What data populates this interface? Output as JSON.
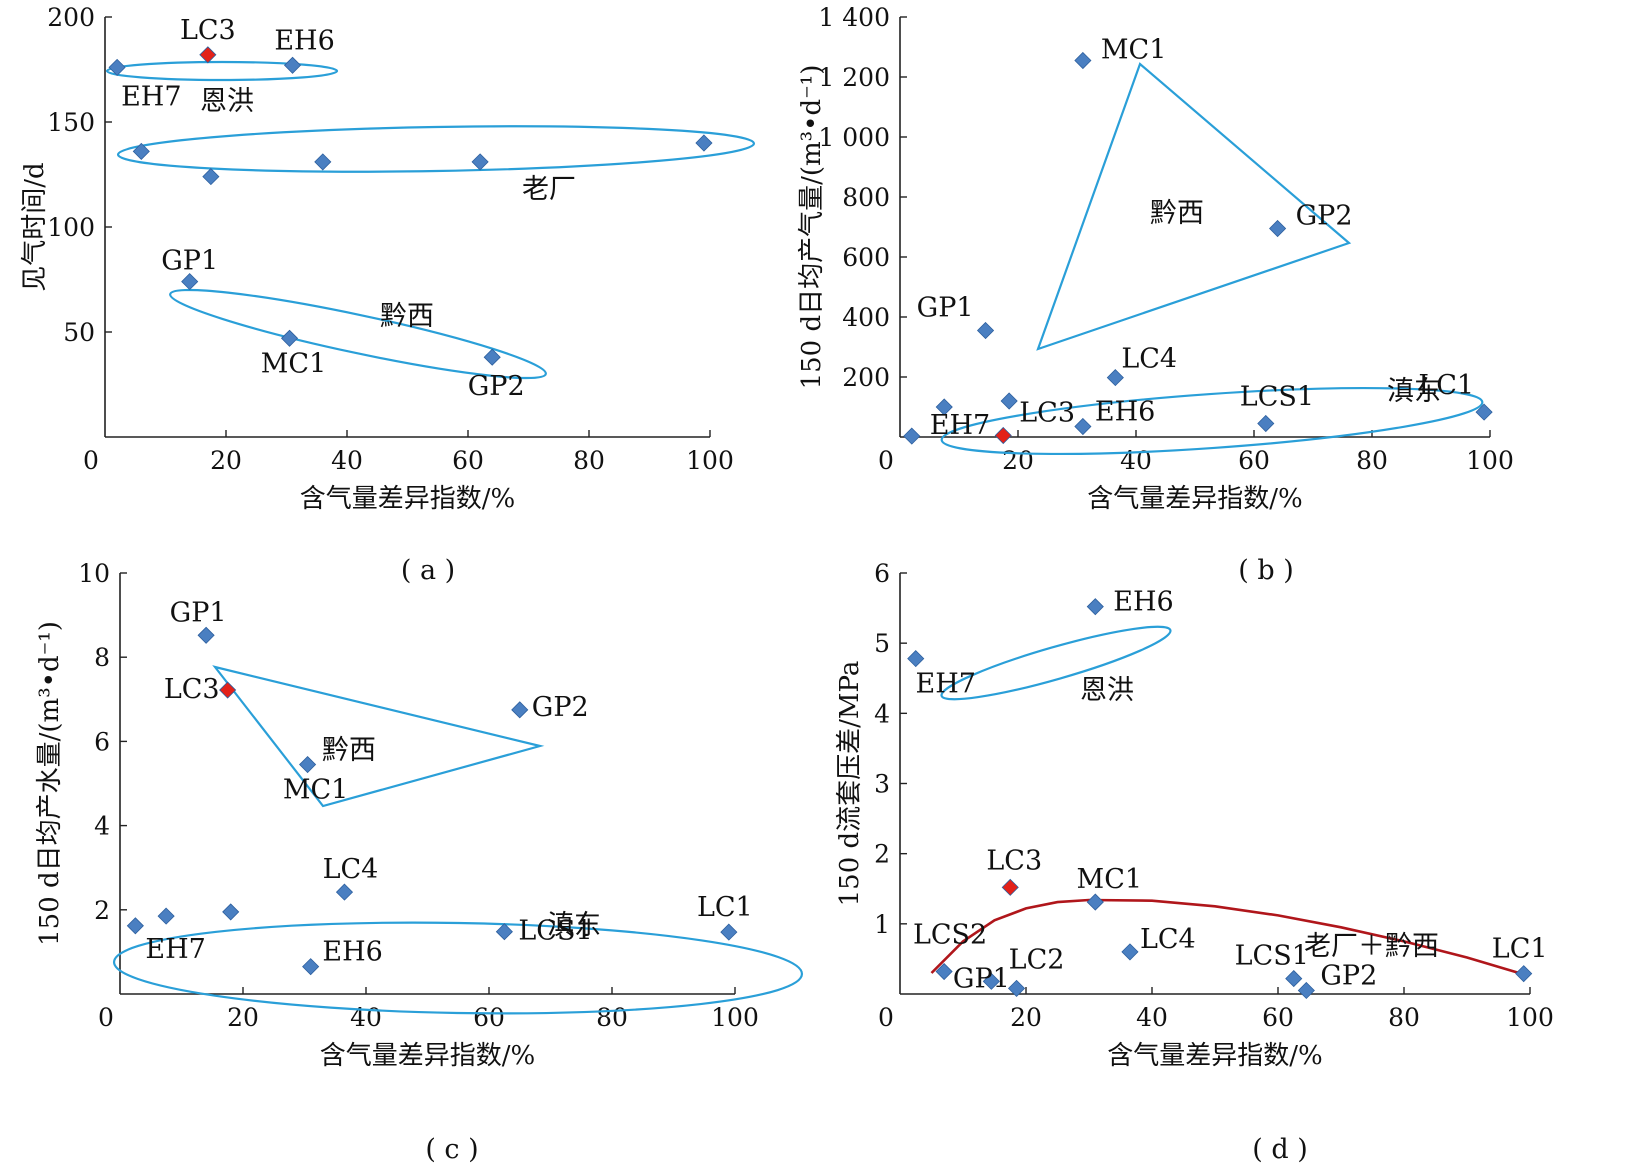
{
  "colors": {
    "normal_point": "#4a7fc1",
    "special_point": "#e32119",
    "enclosure": "#2a9fd8",
    "trend": "#b0161b"
  },
  "chart_data": [
    {
      "id": "a",
      "type": "scatter",
      "caption": "( a )",
      "xlabel": "含气量差异指数/%",
      "ylabel": "见气时间/d",
      "xlim": [
        0,
        100
      ],
      "ylim": [
        0,
        200
      ],
      "xticks": [
        0,
        20,
        40,
        60,
        80,
        100
      ],
      "yticks": [
        50,
        100,
        150,
        200
      ],
      "xtick_labels": [
        "0",
        "20",
        "40",
        "60",
        "80",
        "100"
      ],
      "ytick_labels": [
        "50",
        "100",
        "150",
        "200"
      ],
      "points": [
        {
          "label": "EH7",
          "x": 2,
          "y": 176,
          "color": "normal"
        },
        {
          "label": "LC3",
          "x": 17,
          "y": 182,
          "color": "special"
        },
        {
          "label": "EH6",
          "x": 31,
          "y": 177,
          "color": "normal"
        },
        {
          "label": "",
          "x": 6,
          "y": 136,
          "color": "normal"
        },
        {
          "label": "",
          "x": 17.5,
          "y": 124,
          "color": "normal"
        },
        {
          "label": "",
          "x": 36,
          "y": 131,
          "color": "normal"
        },
        {
          "label": "",
          "x": 62,
          "y": 131,
          "color": "normal"
        },
        {
          "label": "",
          "x": 99,
          "y": 140,
          "color": "normal"
        },
        {
          "label": "GP1",
          "x": 14,
          "y": 74,
          "color": "normal"
        },
        {
          "label": "MC1",
          "x": 30.5,
          "y": 47,
          "color": "normal"
        },
        {
          "label": "GP2",
          "x": 64,
          "y": 38,
          "color": "normal"
        }
      ],
      "groups": [
        "恩洪",
        "老厂",
        "黔西"
      ]
    },
    {
      "id": "b",
      "type": "scatter",
      "caption": "( b )",
      "xlabel": "含气量差异指数/%",
      "ylabel": "150 d日均产气量/(m³•d⁻¹)",
      "xlim": [
        0,
        100
      ],
      "ylim": [
        0,
        1400
      ],
      "xticks": [
        0,
        20,
        40,
        60,
        80,
        100
      ],
      "yticks": [
        200,
        400,
        600,
        800,
        1000,
        1200,
        1400
      ],
      "xtick_labels": [
        "0",
        "20",
        "40",
        "60",
        "80",
        "100"
      ],
      "ytick_labels": [
        "200",
        "400",
        "600",
        "800",
        "1 000",
        "1 200",
        "1 400"
      ],
      "points": [
        {
          "label": "MC1",
          "x": 31,
          "y": 1255,
          "color": "normal"
        },
        {
          "label": "GP2",
          "x": 64,
          "y": 695,
          "color": "normal"
        },
        {
          "label": "GP1",
          "x": 14.5,
          "y": 355,
          "color": "normal"
        },
        {
          "label": "LC4",
          "x": 36.5,
          "y": 198,
          "color": "normal"
        },
        {
          "label": "LC1",
          "x": 99,
          "y": 83,
          "color": "normal"
        },
        {
          "label": "LCS1",
          "x": 62,
          "y": 45,
          "color": "normal"
        },
        {
          "label": "EH6",
          "x": 31,
          "y": 35,
          "color": "normal"
        },
        {
          "label": "LC3",
          "x": 17.5,
          "y": 5,
          "color": "special"
        },
        {
          "label": "",
          "x": 18.5,
          "y": 120,
          "color": "normal"
        },
        {
          "label": "",
          "x": 7.5,
          "y": 100,
          "color": "normal"
        },
        {
          "label": "EH7",
          "x": 2,
          "y": 3,
          "color": "normal"
        }
      ],
      "groups": [
        "黔西",
        "滇东"
      ]
    },
    {
      "id": "c",
      "type": "scatter",
      "caption": "( c )",
      "xlabel": "含气量差异指数/%",
      "ylabel": "150 d日均产水量/(m³•d⁻¹)",
      "xlim": [
        0,
        100
      ],
      "ylim": [
        0,
        10
      ],
      "xticks": [
        0,
        20,
        40,
        60,
        80,
        100
      ],
      "yticks": [
        2,
        4,
        6,
        8,
        10
      ],
      "xtick_labels": [
        "0",
        "20",
        "40",
        "60",
        "80",
        "100"
      ],
      "ytick_labels": [
        "2",
        "4",
        "6",
        "8",
        "10"
      ],
      "points": [
        {
          "label": "GP1",
          "x": 14,
          "y": 8.52,
          "color": "normal"
        },
        {
          "label": "LC3",
          "x": 17.5,
          "y": 7.22,
          "color": "special"
        },
        {
          "label": "GP2",
          "x": 65,
          "y": 6.75,
          "color": "normal"
        },
        {
          "label": "MC1",
          "x": 30.5,
          "y": 5.45,
          "color": "normal"
        },
        {
          "label": "LC4",
          "x": 36.5,
          "y": 2.42,
          "color": "normal"
        },
        {
          "label": "",
          "x": 18,
          "y": 1.95,
          "color": "normal"
        },
        {
          "label": "",
          "x": 7.5,
          "y": 1.85,
          "color": "normal"
        },
        {
          "label": "EH7",
          "x": 2.5,
          "y": 1.62,
          "color": "normal"
        },
        {
          "label": "LCS1",
          "x": 62.5,
          "y": 1.48,
          "color": "normal"
        },
        {
          "label": "LC1",
          "x": 99,
          "y": 1.47,
          "color": "normal"
        },
        {
          "label": "EH6",
          "x": 31,
          "y": 0.65,
          "color": "normal"
        }
      ],
      "groups": [
        "黔西",
        "滇东"
      ]
    },
    {
      "id": "d",
      "type": "scatter",
      "caption": "( d )",
      "xlabel": "含气量差异指数/%",
      "ylabel": "150 d流套压差/MPa",
      "xlim": [
        0,
        100
      ],
      "ylim": [
        0,
        6
      ],
      "xticks": [
        0,
        20,
        40,
        60,
        80,
        100
      ],
      "yticks": [
        1,
        2,
        3,
        4,
        5,
        6
      ],
      "xtick_labels": [
        "0",
        "20",
        "40",
        "60",
        "80",
        "100"
      ],
      "ytick_labels": [
        "1",
        "2",
        "3",
        "4",
        "5",
        "6"
      ],
      "points": [
        {
          "label": "EH6",
          "x": 31,
          "y": 5.52,
          "color": "normal"
        },
        {
          "label": "EH7",
          "x": 2.5,
          "y": 4.78,
          "color": "normal"
        },
        {
          "label": "LC3",
          "x": 17.5,
          "y": 1.52,
          "color": "special"
        },
        {
          "label": "MC1",
          "x": 31,
          "y": 1.31,
          "color": "normal"
        },
        {
          "label": "LC4",
          "x": 36.5,
          "y": 0.6,
          "color": "normal"
        },
        {
          "label": "LCS2",
          "x": 7,
          "y": 0.32,
          "color": "normal"
        },
        {
          "label": "GP1",
          "x": 14.5,
          "y": 0.18,
          "color": "normal"
        },
        {
          "label": "LC2",
          "x": 18.5,
          "y": 0.08,
          "color": "normal"
        },
        {
          "label": "LCS1",
          "x": 62.5,
          "y": 0.22,
          "color": "normal"
        },
        {
          "label": "GP2",
          "x": 64.5,
          "y": 0.05,
          "color": "normal"
        },
        {
          "label": "LC1",
          "x": 99,
          "y": 0.29,
          "color": "normal"
        }
      ],
      "trend": {
        "label": "老厂＋黔西",
        "x": [
          5,
          10,
          15,
          20,
          25,
          30,
          40,
          50,
          60,
          70,
          80,
          90,
          99
        ],
        "y": [
          0.3,
          0.75,
          1.05,
          1.22,
          1.31,
          1.34,
          1.33,
          1.25,
          1.12,
          0.95,
          0.75,
          0.52,
          0.28
        ]
      },
      "groups": [
        "恩洪"
      ]
    }
  ]
}
